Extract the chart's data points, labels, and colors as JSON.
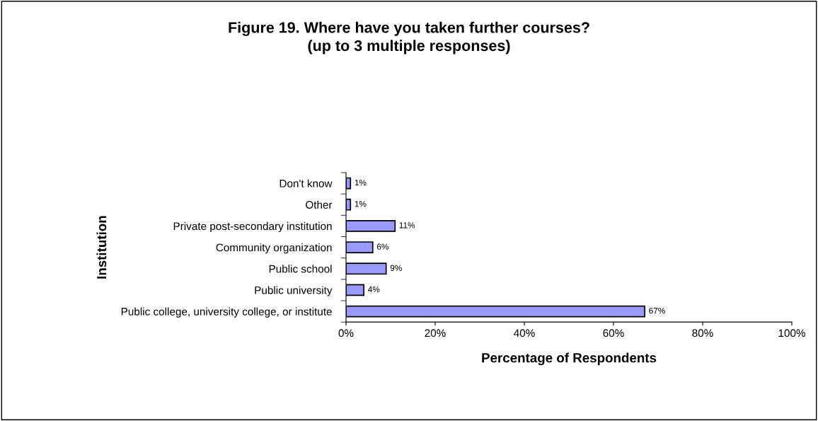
{
  "chart_data": {
    "type": "bar",
    "orientation": "horizontal",
    "title": "Figure 19. Where have you taken further courses?\n(up to 3 multiple responses)",
    "xlabel": "Percentage of Respondents",
    "ylabel": "Institution",
    "categories": [
      "Don't know",
      "Other",
      "Private post-secondary institution",
      "Community organization",
      "Public school",
      "Public university",
      "Public college, university college, or institute"
    ],
    "values": [
      1,
      1,
      11,
      6,
      9,
      4,
      67
    ],
    "value_labels": [
      "1%",
      "1%",
      "11%",
      "6%",
      "9%",
      "4%",
      "67%"
    ],
    "color": "#9999ff",
    "xlim": [
      0,
      100
    ],
    "xticks": [
      {
        "value": 0,
        "label": "0%"
      },
      {
        "value": 20,
        "label": "20%"
      },
      {
        "value": 40,
        "label": "40%"
      },
      {
        "value": 60,
        "label": "60%"
      },
      {
        "value": 80,
        "label": "80%"
      },
      {
        "value": 100,
        "label": "100%"
      }
    ],
    "grid": false,
    "legend": false
  }
}
